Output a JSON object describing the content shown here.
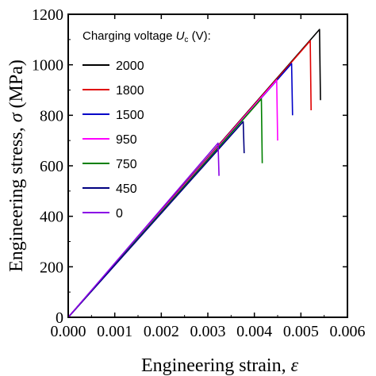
{
  "chart_data": {
    "type": "line",
    "xlabel_text": "Engineering strain, ",
    "xlabel_symbol": "ε",
    "ylabel_text": "Engineering stress, ",
    "ylabel_symbol": "σ",
    "ylabel_unit": " (MPa)",
    "xlim": [
      0.0,
      0.006
    ],
    "ylim": [
      0,
      1200
    ],
    "x_ticks": [
      "0.000",
      "0.001",
      "0.002",
      "0.003",
      "0.004",
      "0.005",
      "0.006"
    ],
    "y_ticks": [
      "0",
      "200",
      "400",
      "600",
      "800",
      "1000",
      "1200"
    ],
    "x_tick_values": [
      0.0,
      0.001,
      0.002,
      0.003,
      0.004,
      0.005,
      0.006
    ],
    "y_tick_values": [
      0,
      200,
      400,
      600,
      800,
      1000,
      1200
    ],
    "legend": {
      "title_prefix": "Charging voltage ",
      "title_symbol": "U",
      "title_subscript": "c",
      "title_suffix": " (V):",
      "placement": "top-left"
    },
    "series": [
      {
        "name": "2000",
        "color": "#000000",
        "x": [
          0.0,
          0.0054,
          0.00542
        ],
        "y": [
          0,
          1140,
          860
        ]
      },
      {
        "name": "1800",
        "color": "#e00000",
        "x": [
          0.0,
          0.0052,
          0.00522
        ],
        "y": [
          0,
          1095,
          820
        ]
      },
      {
        "name": "1500",
        "color": "#0000c8",
        "x": [
          0.0,
          0.0048,
          0.00482
        ],
        "y": [
          0,
          1005,
          800
        ]
      },
      {
        "name": "950",
        "color": "#ff00ff",
        "x": [
          0.0,
          0.00448,
          0.0045
        ],
        "y": [
          0,
          940,
          700
        ]
      },
      {
        "name": "750",
        "color": "#008000",
        "x": [
          0.0,
          0.00415,
          0.00417
        ],
        "y": [
          0,
          865,
          610
        ]
      },
      {
        "name": "450",
        "color": "#000080",
        "x": [
          0.0,
          0.00376,
          0.00378
        ],
        "y": [
          0,
          775,
          650
        ]
      },
      {
        "name": "0",
        "color": "#8a00e6",
        "x": [
          0.0,
          0.00322,
          0.00324
        ],
        "y": [
          0,
          690,
          560
        ]
      }
    ]
  }
}
